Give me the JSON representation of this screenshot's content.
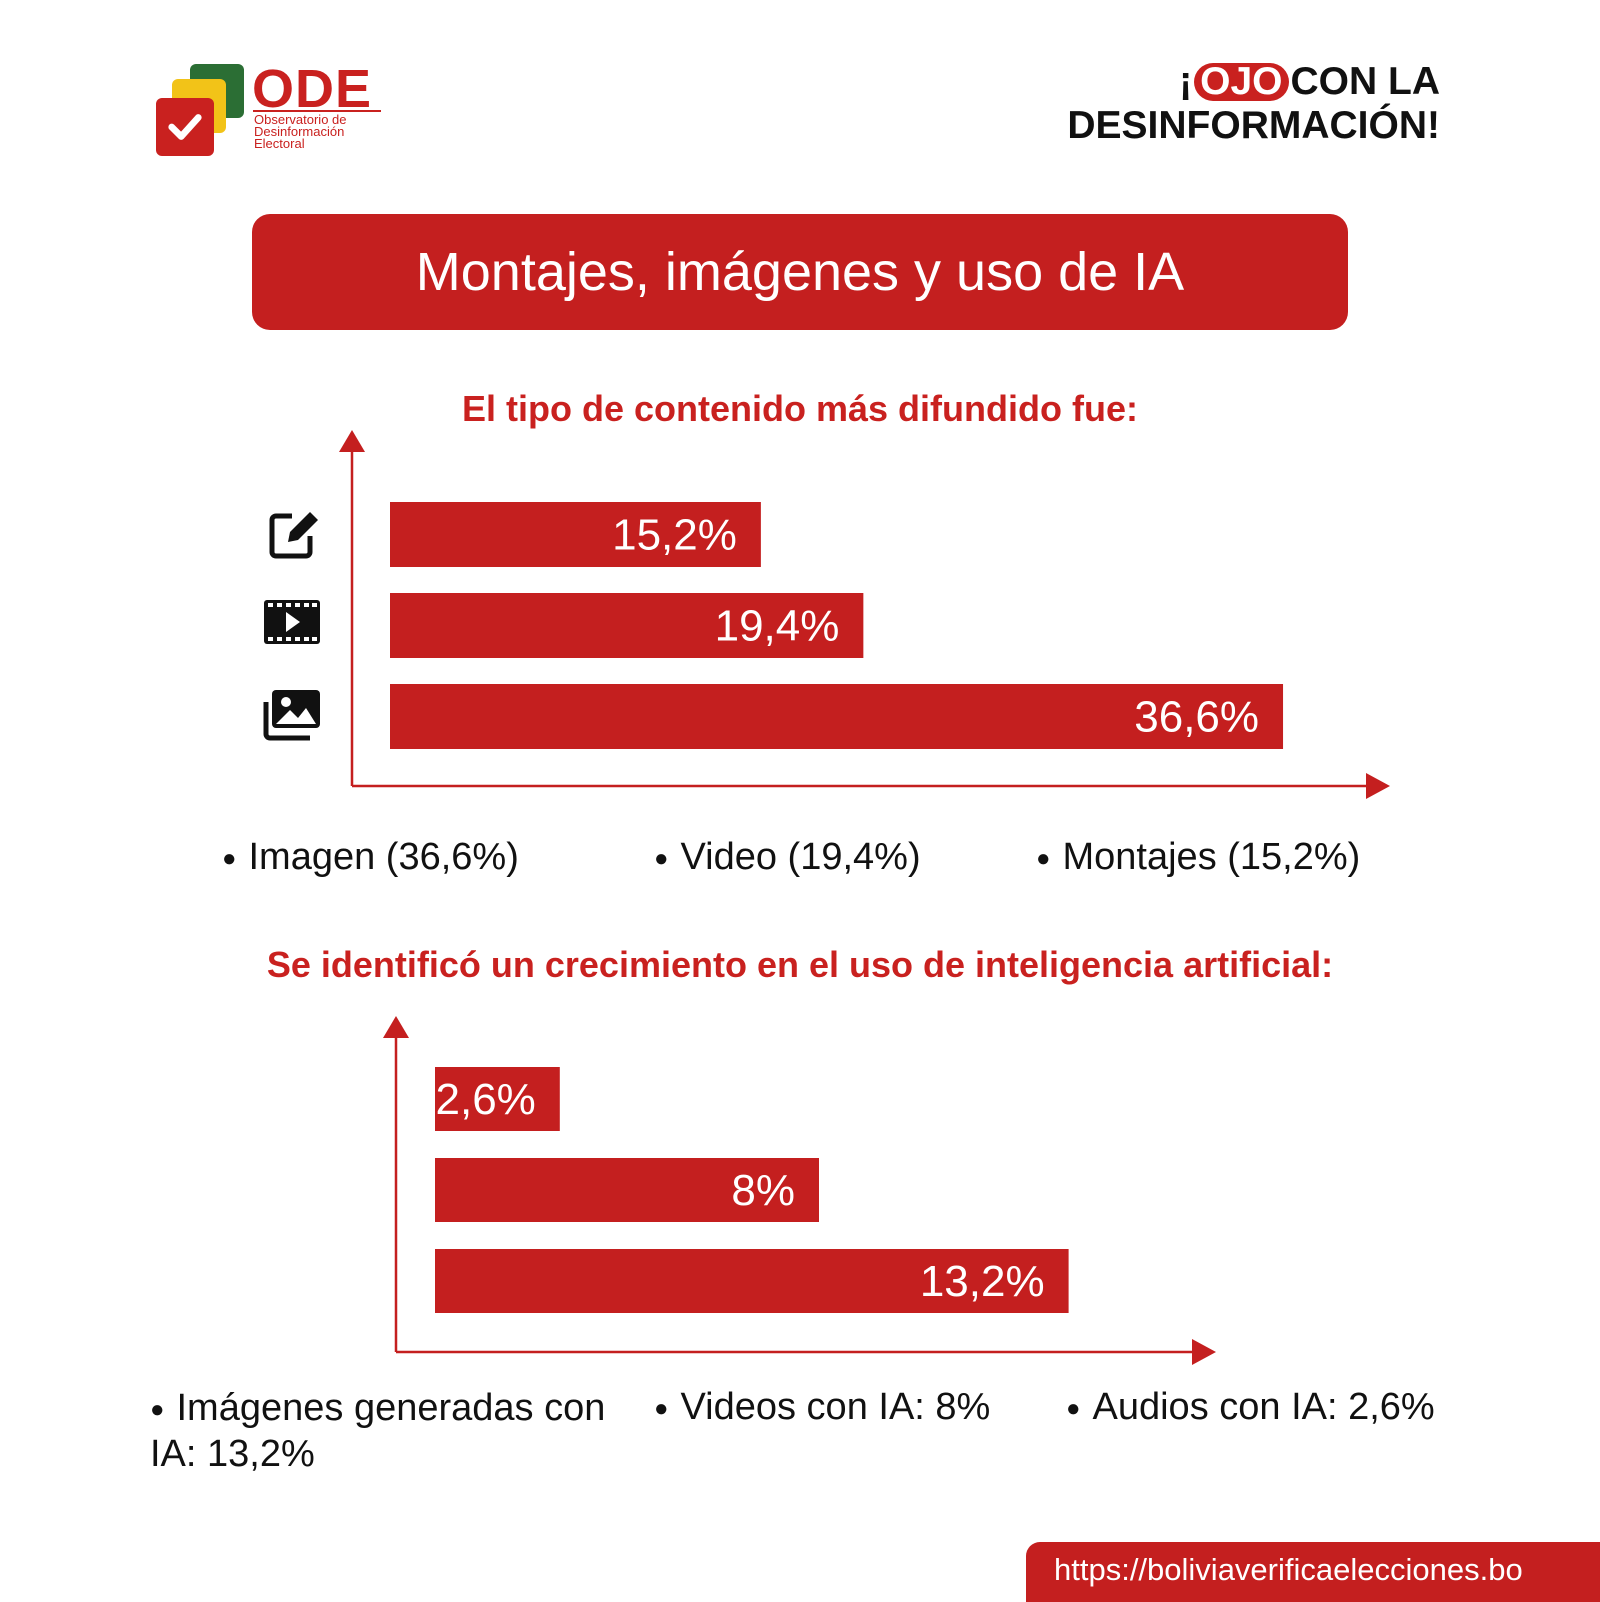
{
  "header": {
    "logo_name": "ODE",
    "logo_sub": [
      "Observatorio de",
      "Desinformación",
      "Electoral"
    ],
    "slogan_pre": "¡",
    "slogan_highlight": "OJO",
    "slogan_rest": "CON LA",
    "slogan_line2": "DESINFORMACIÓN!"
  },
  "title": "Montajes, imágenes y uso de IA",
  "colors": {
    "accent": "#c41f1f",
    "text": "#111111"
  },
  "chart_data": [
    {
      "type": "bar",
      "orientation": "horizontal",
      "title": "El tipo de contenido más difundido fue:",
      "categories": [
        "Montajes",
        "Video",
        "Imagen"
      ],
      "category_icons": [
        "edit-icon",
        "video-icon",
        "image-icon"
      ],
      "values": [
        15.2,
        19.4,
        36.6
      ],
      "value_labels": [
        "15,2%",
        "19,4%",
        "36,6%"
      ],
      "legend": [
        "Imagen (36,6%)",
        "Video (19,4%)",
        "Montajes (15,2%)"
      ]
    },
    {
      "type": "bar",
      "orientation": "horizontal",
      "title": "Se identificó un crecimiento en el uso de inteligencia artificial:",
      "categories": [
        "Audios con IA",
        "Videos con IA",
        "Imágenes generadas con IA"
      ],
      "values": [
        2.6,
        8,
        13.2
      ],
      "value_labels": [
        "2,6%",
        "8%",
        "13,2%"
      ],
      "legend": [
        "Imágenes generadas con IA: 13,2%",
        "Videos con IA: 8%",
        "Audios con IA: 2,6%"
      ]
    }
  ],
  "footer": {
    "url": "https://boliviaverificaelecciones.bo"
  }
}
